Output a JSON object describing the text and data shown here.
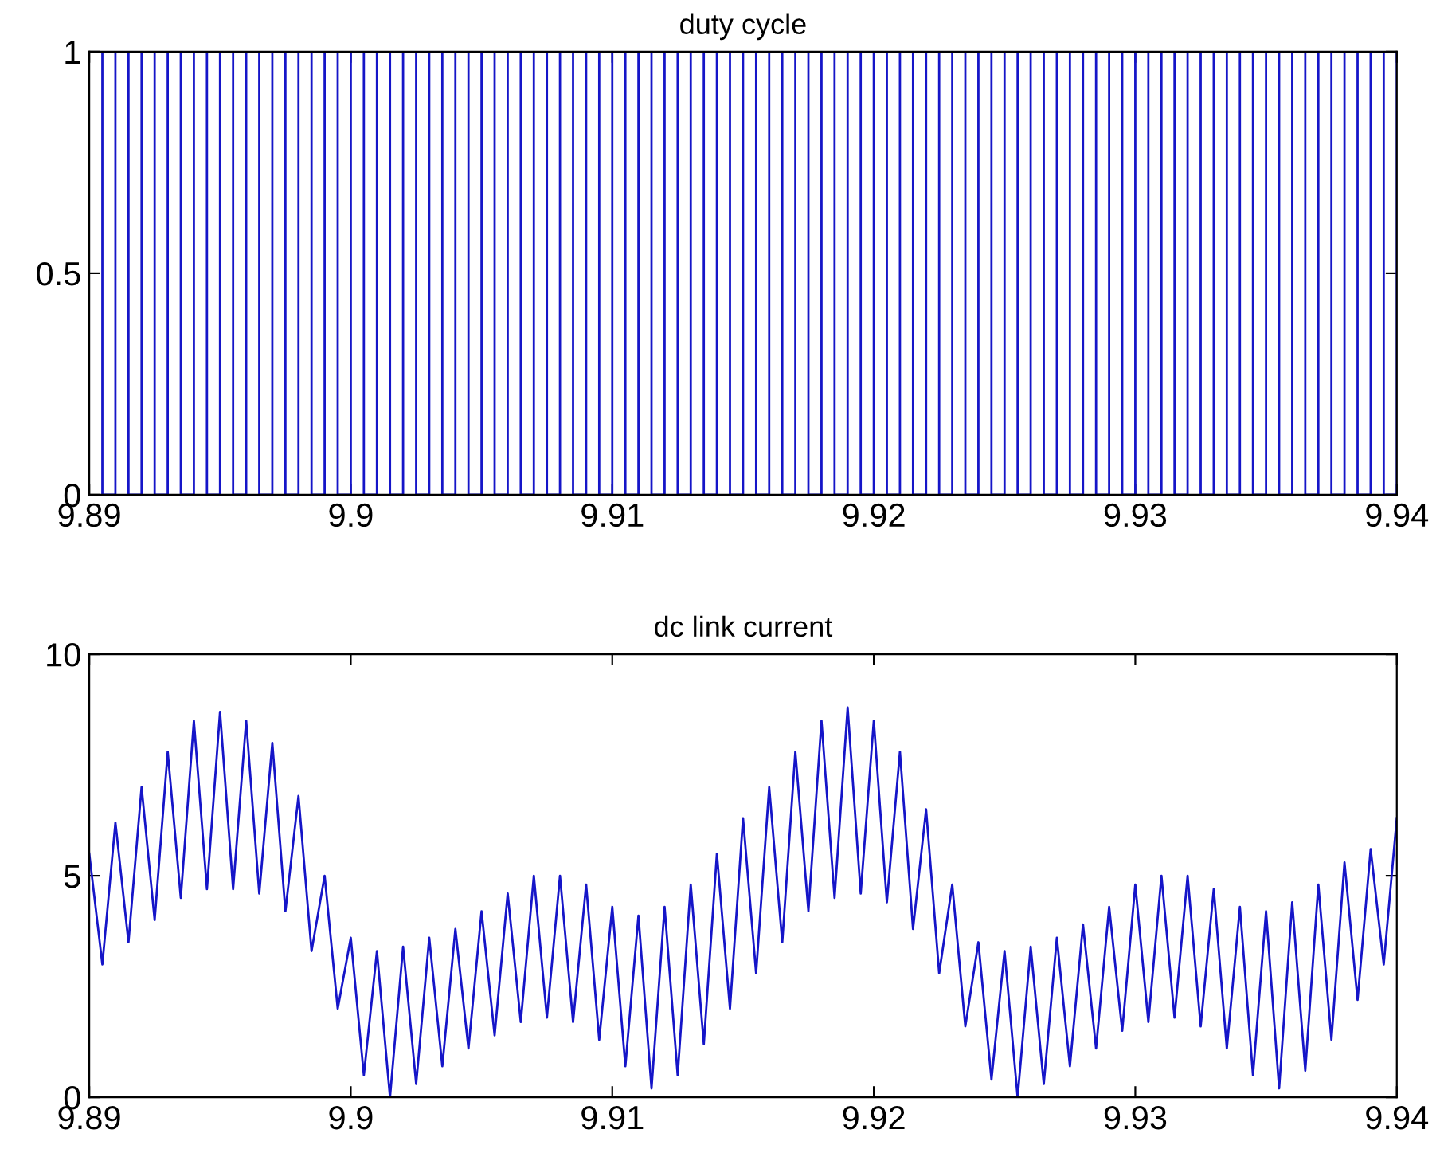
{
  "chart_data": [
    {
      "type": "step",
      "title": "duty cycle",
      "x": [
        9.89,
        9.8905,
        9.891,
        9.8915,
        9.892,
        9.8925,
        9.893,
        9.8935,
        9.894,
        9.8945,
        9.895,
        9.8955,
        9.896,
        9.8965,
        9.897,
        9.8975,
        9.898,
        9.8985,
        9.899,
        9.8995,
        9.9,
        9.9005,
        9.901,
        9.9015,
        9.902,
        9.9025,
        9.903,
        9.9035,
        9.904,
        9.9045,
        9.905,
        9.9055,
        9.906,
        9.9065,
        9.907,
        9.9075,
        9.908,
        9.9085,
        9.909,
        9.9095,
        9.91,
        9.9105,
        9.911,
        9.9115,
        9.912,
        9.9125,
        9.913,
        9.9135,
        9.914,
        9.9145,
        9.915,
        9.9155,
        9.916,
        9.9165,
        9.917,
        9.9175,
        9.918,
        9.9185,
        9.919,
        9.9195,
        9.92,
        9.9205,
        9.921,
        9.9215,
        9.922,
        9.9225,
        9.923,
        9.9235,
        9.924,
        9.9245,
        9.925,
        9.9255,
        9.926,
        9.9265,
        9.927,
        9.9275,
        9.928,
        9.9285,
        9.929,
        9.9295,
        9.93,
        9.9305,
        9.931,
        9.9315,
        9.932,
        9.9325,
        9.933,
        9.9335,
        9.934,
        9.9345,
        9.935,
        9.9355,
        9.936,
        9.9365,
        9.937,
        9.9375,
        9.938,
        9.9385,
        9.939,
        9.9395,
        9.94
      ],
      "series": [
        {
          "color": "#1515c8",
          "values": [
            1,
            0,
            1,
            0,
            1,
            0,
            1,
            0,
            1,
            0,
            1,
            0,
            1,
            0,
            1,
            0,
            1,
            0,
            1,
            0,
            1,
            0,
            1,
            0,
            1,
            0,
            1,
            0,
            1,
            0,
            1,
            0,
            1,
            0,
            1,
            0,
            1,
            0,
            1,
            0,
            1,
            0,
            1,
            0,
            1,
            0,
            1,
            0,
            1,
            0,
            1,
            0,
            1,
            0,
            1,
            0,
            1,
            0,
            1,
            0,
            1,
            0,
            1,
            0,
            1,
            0,
            1,
            0,
            1,
            0,
            1,
            0,
            1,
            0,
            1,
            0,
            1,
            0,
            1,
            0,
            1,
            0,
            1,
            0,
            1,
            0,
            1,
            0,
            1,
            0,
            1,
            0,
            1,
            0,
            1,
            0,
            1,
            0,
            1,
            0,
            1
          ]
        }
      ],
      "xlim": [
        9.89,
        9.94
      ],
      "xticks": [
        9.89,
        9.9,
        9.91,
        9.92,
        9.93,
        9.94
      ],
      "ylim": [
        0,
        1
      ],
      "yticks": [
        0,
        0.5,
        1
      ],
      "grid": false,
      "legend": false
    },
    {
      "type": "line",
      "title": "dc link current",
      "x": [
        9.89,
        9.8905,
        9.891,
        9.8915,
        9.892,
        9.8925,
        9.893,
        9.8935,
        9.894,
        9.8945,
        9.895,
        9.8955,
        9.896,
        9.8965,
        9.897,
        9.8975,
        9.898,
        9.8985,
        9.899,
        9.8995,
        9.9,
        9.9005,
        9.901,
        9.9015,
        9.902,
        9.9025,
        9.903,
        9.9035,
        9.904,
        9.9045,
        9.905,
        9.9055,
        9.906,
        9.9065,
        9.907,
        9.9075,
        9.908,
        9.9085,
        9.909,
        9.9095,
        9.91,
        9.9105,
        9.911,
        9.9115,
        9.912,
        9.9125,
        9.913,
        9.9135,
        9.914,
        9.9145,
        9.915,
        9.9155,
        9.916,
        9.9165,
        9.917,
        9.9175,
        9.918,
        9.9185,
        9.919,
        9.9195,
        9.92,
        9.9205,
        9.921,
        9.9215,
        9.922,
        9.9225,
        9.923,
        9.9235,
        9.924,
        9.9245,
        9.925,
        9.9255,
        9.926,
        9.9265,
        9.927,
        9.9275,
        9.928,
        9.9285,
        9.929,
        9.9295,
        9.93,
        9.9305,
        9.931,
        9.9315,
        9.932,
        9.9325,
        9.933,
        9.9335,
        9.934,
        9.9345,
        9.935,
        9.9355,
        9.936,
        9.9365,
        9.937,
        9.9375,
        9.938,
        9.9385,
        9.939,
        9.9395,
        9.94
      ],
      "series": [
        {
          "color": "#1515c8",
          "values": [
            5.5,
            3.0,
            6.2,
            3.5,
            7.0,
            4.0,
            7.8,
            4.5,
            8.5,
            4.7,
            8.7,
            4.7,
            8.5,
            4.6,
            8.0,
            4.2,
            6.8,
            3.3,
            5.0,
            2.0,
            3.6,
            0.5,
            3.3,
            0.0,
            3.4,
            0.3,
            3.6,
            0.7,
            3.8,
            1.1,
            4.2,
            1.4,
            4.6,
            1.7,
            5.0,
            1.8,
            5.0,
            1.7,
            4.8,
            1.3,
            4.3,
            0.7,
            4.1,
            0.2,
            4.3,
            0.5,
            4.8,
            1.2,
            5.5,
            2.0,
            6.3,
            2.8,
            7.0,
            3.5,
            7.8,
            4.2,
            8.5,
            4.5,
            8.8,
            4.6,
            8.5,
            4.4,
            7.8,
            3.8,
            6.5,
            2.8,
            4.8,
            1.6,
            3.5,
            0.4,
            3.3,
            0.0,
            3.4,
            0.3,
            3.6,
            0.7,
            3.9,
            1.1,
            4.3,
            1.5,
            4.8,
            1.7,
            5.0,
            1.8,
            5.0,
            1.6,
            4.7,
            1.1,
            4.3,
            0.5,
            4.2,
            0.2,
            4.4,
            0.6,
            4.8,
            1.3,
            5.3,
            2.2,
            5.6,
            3.0,
            6.3
          ]
        }
      ],
      "xlim": [
        9.89,
        9.94
      ],
      "xticks": [
        9.89,
        9.9,
        9.91,
        9.92,
        9.93,
        9.94
      ],
      "ylim": [
        0,
        10
      ],
      "yticks": [
        0,
        5,
        10
      ],
      "grid": false,
      "legend": false
    }
  ]
}
